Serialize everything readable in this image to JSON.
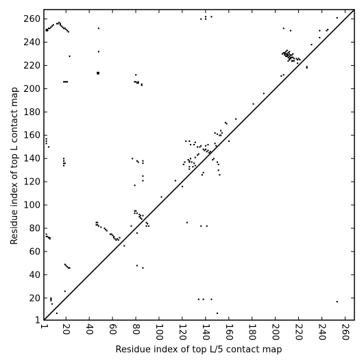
{
  "chart_data": {
    "type": "scatter",
    "title": "",
    "xlabel": "Residue index of top L/5 contact map",
    "ylabel": "Residue index of top L contact map",
    "xlim": [
      1,
      268
    ],
    "ylim": [
      1,
      268
    ],
    "grid": false,
    "x_ticks": [
      1,
      20,
      40,
      60,
      80,
      100,
      120,
      140,
      160,
      180,
      200,
      220,
      240,
      260
    ],
    "y_ticks": [
      1,
      20,
      40,
      60,
      80,
      100,
      120,
      140,
      160,
      180,
      200,
      220,
      240,
      260
    ],
    "x_tick_labels": [
      "1",
      "20",
      "40",
      "60",
      "80",
      "100",
      "120",
      "140",
      "160",
      "180",
      "200",
      "220",
      "240",
      "260"
    ],
    "y_tick_labels": [
      "1",
      "20",
      "40",
      "60",
      "80",
      "100",
      "120",
      "140",
      "160",
      "180",
      "200",
      "220",
      "240",
      "260"
    ],
    "x_tick_rotation_deg": -90,
    "diagonal": {
      "from": [
        1,
        1
      ],
      "to": [
        268,
        268
      ]
    },
    "marker_color": "#000000",
    "cell_size": 1,
    "upper_triangle_points": [
      [
        3,
        250
      ],
      [
        4,
        250
      ],
      [
        3,
        251
      ],
      [
        4,
        251
      ],
      [
        5,
        252
      ],
      [
        6,
        252
      ],
      [
        7,
        253
      ],
      [
        8,
        254
      ],
      [
        9,
        255
      ],
      [
        12,
        256
      ],
      [
        13,
        256
      ],
      [
        14,
        257
      ],
      [
        15,
        256
      ],
      [
        15,
        255
      ],
      [
        16,
        254
      ],
      [
        17,
        253
      ],
      [
        18,
        252
      ],
      [
        19,
        252
      ],
      [
        20,
        251
      ],
      [
        21,
        250
      ],
      [
        22,
        249
      ],
      [
        18,
        206
      ],
      [
        19,
        206
      ],
      [
        20,
        206
      ],
      [
        21,
        206
      ],
      [
        23,
        228
      ],
      [
        48,
        252
      ],
      [
        48,
        232
      ],
      [
        47,
        213
      ],
      [
        48,
        213
      ],
      [
        47,
        214
      ],
      [
        48,
        214
      ],
      [
        80,
        212
      ],
      [
        79,
        206
      ],
      [
        80,
        206
      ],
      [
        82,
        206
      ],
      [
        81,
        205
      ],
      [
        82,
        205
      ],
      [
        85,
        204
      ],
      [
        85,
        203
      ],
      [
        136,
        260
      ],
      [
        140,
        260
      ],
      [
        140,
        262
      ],
      [
        145,
        262
      ],
      [
        205,
        211
      ],
      [
        207,
        212
      ],
      [
        207,
        252
      ],
      [
        213,
        250
      ],
      [
        216,
        226
      ],
      [
        218,
        226
      ],
      [
        220,
        226
      ],
      [
        221,
        225
      ],
      [
        219,
        225
      ],
      [
        219,
        222
      ],
      [
        227,
        219
      ],
      [
        227,
        218
      ],
      [
        231,
        238
      ],
      [
        238,
        244
      ],
      [
        238,
        250
      ],
      [
        244,
        250
      ],
      [
        245,
        251
      ],
      [
        253,
        261
      ],
      [
        123,
        155
      ],
      [
        126,
        155
      ],
      [
        127,
        152
      ],
      [
        130,
        152
      ],
      [
        131,
        154
      ],
      [
        133,
        150
      ],
      [
        135,
        150
      ],
      [
        136,
        151
      ],
      [
        138,
        148
      ],
      [
        140,
        151
      ],
      [
        142,
        152
      ],
      [
        148,
        162
      ],
      [
        150,
        161
      ],
      [
        152,
        160
      ],
      [
        153,
        160
      ],
      [
        154,
        162
      ],
      [
        153,
        164
      ],
      [
        157,
        171
      ],
      [
        158,
        170
      ],
      [
        160,
        155
      ],
      [
        166,
        174
      ],
      [
        181,
        187
      ],
      [
        190,
        196
      ],
      [
        206,
        230
      ],
      [
        207,
        231
      ],
      [
        208,
        231
      ],
      [
        209,
        232
      ],
      [
        210,
        233
      ],
      [
        211,
        231
      ],
      [
        212,
        232
      ],
      [
        213,
        229
      ],
      [
        214,
        229
      ],
      [
        215,
        230
      ],
      [
        208,
        229
      ],
      [
        209,
        228
      ],
      [
        210,
        228
      ],
      [
        211,
        227
      ],
      [
        212,
        226
      ],
      [
        213,
        226
      ],
      [
        211,
        224
      ],
      [
        212,
        225
      ],
      [
        214,
        224
      ],
      [
        215,
        224
      ],
      [
        216,
        224
      ],
      [
        208,
        230
      ],
      [
        209,
        230
      ],
      [
        210,
        230
      ],
      [
        212,
        228
      ],
      [
        213,
        227
      ],
      [
        214,
        227
      ],
      [
        215,
        227
      ],
      [
        210,
        229
      ],
      [
        211,
        229
      ],
      [
        212,
        230
      ]
    ],
    "lower_triangle_points": [
      [
        3,
        75
      ],
      [
        3,
        73
      ],
      [
        4,
        73
      ],
      [
        5,
        72
      ],
      [
        6,
        72
      ],
      [
        6,
        71
      ],
      [
        7,
        20
      ],
      [
        7,
        19
      ],
      [
        7,
        18
      ],
      [
        8,
        15
      ],
      [
        12,
        7
      ],
      [
        3,
        157
      ],
      [
        3,
        155
      ],
      [
        3,
        153
      ],
      [
        5,
        150
      ],
      [
        18,
        140
      ],
      [
        18,
        138
      ],
      [
        18,
        136
      ],
      [
        18,
        134
      ],
      [
        19,
        136
      ],
      [
        19,
        49
      ],
      [
        20,
        48
      ],
      [
        21,
        47
      ],
      [
        22,
        46
      ],
      [
        23,
        46
      ],
      [
        19,
        26
      ],
      [
        46,
        85
      ],
      [
        46,
        83
      ],
      [
        47,
        85
      ],
      [
        47,
        83
      ],
      [
        48,
        82
      ],
      [
        50,
        81
      ],
      [
        53,
        80
      ],
      [
        54,
        79
      ],
      [
        55,
        78
      ],
      [
        58,
        75
      ],
      [
        59,
        75
      ],
      [
        60,
        74
      ],
      [
        61,
        73
      ],
      [
        61,
        72
      ],
      [
        62,
        71
      ],
      [
        63,
        70
      ],
      [
        64,
        71
      ],
      [
        65,
        70
      ],
      [
        66,
        72
      ],
      [
        70,
        65
      ],
      [
        76,
        82
      ],
      [
        79,
        95
      ],
      [
        79,
        93
      ],
      [
        80,
        95
      ],
      [
        81,
        93
      ],
      [
        83,
        92
      ],
      [
        84,
        91
      ],
      [
        83,
        90
      ],
      [
        84,
        89
      ],
      [
        85,
        88
      ],
      [
        86,
        91
      ],
      [
        89,
        85
      ],
      [
        90,
        84
      ],
      [
        91,
        82
      ],
      [
        77,
        140
      ],
      [
        79,
        117
      ],
      [
        82,
        137
      ],
      [
        81,
        138
      ],
      [
        86,
        136
      ],
      [
        86,
        138
      ],
      [
        86,
        125
      ],
      [
        86,
        121
      ],
      [
        81,
        48
      ],
      [
        86,
        46
      ],
      [
        81,
        76
      ],
      [
        89,
        82
      ],
      [
        102,
        107
      ],
      [
        114,
        121
      ],
      [
        120,
        116
      ],
      [
        121,
        135
      ],
      [
        122,
        137
      ],
      [
        125,
        139
      ],
      [
        126,
        138
      ],
      [
        127,
        140
      ],
      [
        128,
        137
      ],
      [
        130,
        136
      ],
      [
        131,
        141
      ],
      [
        133,
        143
      ],
      [
        134,
        144
      ],
      [
        124,
        85
      ],
      [
        126,
        131
      ],
      [
        126,
        133
      ],
      [
        126,
        137
      ],
      [
        129,
        133
      ],
      [
        131,
        134
      ],
      [
        137,
        126
      ],
      [
        138,
        128
      ],
      [
        139,
        147
      ],
      [
        140,
        148
      ],
      [
        141,
        146
      ],
      [
        142,
        147
      ],
      [
        143,
        145
      ],
      [
        144,
        146
      ],
      [
        146,
        139
      ],
      [
        147,
        140
      ],
      [
        148,
        153
      ],
      [
        149,
        151
      ],
      [
        150,
        137
      ],
      [
        151,
        135
      ],
      [
        151,
        130
      ],
      [
        152,
        126
      ],
      [
        136,
        82
      ],
      [
        141,
        82
      ],
      [
        134,
        19
      ],
      [
        138,
        19
      ],
      [
        145,
        19
      ],
      [
        150,
        7
      ],
      [
        253,
        17
      ]
    ]
  }
}
